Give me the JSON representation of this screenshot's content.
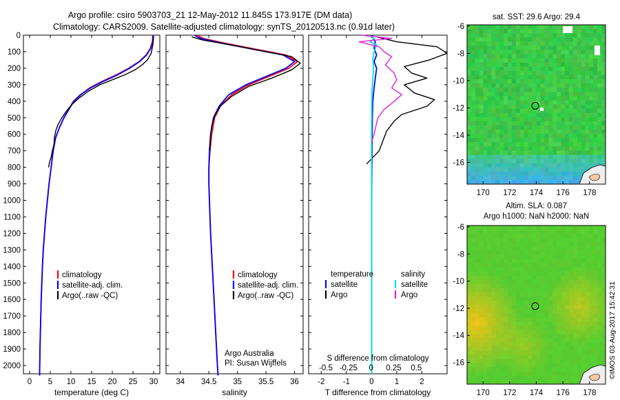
{
  "header": {
    "line1": "Argo profile: csiro 5903703_21 12-May-2012 11.845S 173.917E (DM data)",
    "line2": "Climatology: CARS2009. Satellite-adjusted climatology: synTS_20120513.nc (0.91d later)"
  },
  "footer_stamp": "©IMOS 03-Aug-2017 15:42:31",
  "colors": {
    "climatology": "#ff0000",
    "satellite": "#0000ff",
    "argo": "#000000",
    "salinity_satellite": "#00e0e0",
    "salinity_argo": "#e020e0",
    "sst_map_base": "#33cc44",
    "sla_map_base": "#55cc33"
  },
  "chart_data": [
    {
      "type": "line",
      "panel": "temperature",
      "xlabel": "temperature (deg C)",
      "ylabel": "",
      "xlim": [
        -1.5,
        31.5
      ],
      "ylim": [
        2050,
        0
      ],
      "xticks": [
        0,
        5,
        10,
        15,
        20,
        25,
        30
      ],
      "yticks": [
        0,
        100,
        200,
        300,
        400,
        500,
        600,
        700,
        800,
        900,
        1000,
        1100,
        1200,
        1300,
        1400,
        1500,
        1600,
        1700,
        1800,
        1900,
        2000
      ],
      "legend": {
        "placement": "lower-middle",
        "entries": [
          "climatology",
          "satellite-adj. clim.",
          "Argo(..raw -QC)"
        ]
      },
      "series": [
        {
          "name": "climatology",
          "color": "#ff0000",
          "points": [
            [
              29.8,
              0
            ],
            [
              29.7,
              40
            ],
            [
              29.2,
              80
            ],
            [
              28.2,
              120
            ],
            [
              26.5,
              160
            ],
            [
              24,
              200
            ],
            [
              21,
              240
            ],
            [
              17.5,
              280
            ],
            [
              14.5,
              320
            ],
            [
              12.3,
              360
            ],
            [
              10.6,
              400
            ],
            [
              9.4,
              450
            ],
            [
              8.3,
              500
            ],
            [
              7.2,
              560
            ],
            [
              6.3,
              620
            ],
            [
              5.7,
              700
            ],
            [
              5.2,
              800
            ],
            [
              4.7,
              900
            ],
            [
              4.3,
              1000
            ],
            [
              3.9,
              1100
            ],
            [
              3.6,
              1200
            ],
            [
              3.3,
              1300
            ],
            [
              3.1,
              1400
            ],
            [
              2.95,
              1500
            ],
            [
              2.8,
              1600
            ],
            [
              2.7,
              1700
            ],
            [
              2.6,
              1800
            ],
            [
              2.5,
              1900
            ],
            [
              2.45,
              2000
            ],
            [
              2.4,
              2060
            ]
          ]
        },
        {
          "name": "satellite-adj. clim.",
          "color": "#0000ff",
          "points": [
            [
              29.9,
              0
            ],
            [
              29.8,
              40
            ],
            [
              29.3,
              80
            ],
            [
              28.3,
              120
            ],
            [
              26.6,
              160
            ],
            [
              24.2,
              200
            ],
            [
              21.3,
              240
            ],
            [
              17.8,
              280
            ],
            [
              14.7,
              320
            ],
            [
              12.4,
              360
            ],
            [
              10.7,
              400
            ],
            [
              9.5,
              450
            ],
            [
              8.3,
              500
            ],
            [
              7.2,
              560
            ],
            [
              6.3,
              620
            ],
            [
              5.7,
              700
            ],
            [
              5.2,
              800
            ],
            [
              4.7,
              900
            ],
            [
              4.3,
              1000
            ],
            [
              3.9,
              1100
            ],
            [
              3.6,
              1200
            ],
            [
              3.3,
              1300
            ],
            [
              3.1,
              1400
            ],
            [
              2.95,
              1500
            ],
            [
              2.8,
              1600
            ],
            [
              2.7,
              1700
            ],
            [
              2.6,
              1800
            ],
            [
              2.5,
              1900
            ],
            [
              2.45,
              2000
            ],
            [
              2.4,
              2060
            ]
          ]
        },
        {
          "name": "Argo(..raw -QC)",
          "color": "#000000",
          "points": [
            [
              30,
              10
            ],
            [
              29.8,
              60
            ],
            [
              29.4,
              110
            ],
            [
              28.5,
              150
            ],
            [
              27.2,
              180
            ],
            [
              25.5,
              210
            ],
            [
              23,
              240
            ],
            [
              20,
              270
            ],
            [
              17,
              300
            ],
            [
              14.2,
              340
            ],
            [
              12,
              380
            ],
            [
              10.2,
              420
            ],
            [
              8.9,
              460
            ],
            [
              7.8,
              500
            ],
            [
              6.9,
              540
            ],
            [
              6.3,
              580
            ],
            [
              6,
              620
            ],
            [
              5.9,
              660
            ],
            [
              5.5,
              700
            ],
            [
              5.2,
              740
            ],
            [
              4.8,
              770
            ],
            [
              4.6,
              800
            ]
          ]
        }
      ]
    },
    {
      "type": "line",
      "panel": "salinity",
      "xlabel": "salinity",
      "ylabel": "",
      "xlim": [
        33.75,
        36.15
      ],
      "ylim": [
        2050,
        0
      ],
      "xticks": [
        34,
        34.5,
        35,
        35.5,
        36
      ],
      "legend": {
        "placement": "lower-middle",
        "entries": [
          "climatology",
          "satellite-adj. clim.",
          "Argo(..raw -QC)"
        ]
      },
      "annotation": [
        "Argo Australia",
        "PI: Susan Wijffels"
      ],
      "series": [
        {
          "name": "climatology",
          "color": "#ff0000",
          "points": [
            [
              34.3,
              0
            ],
            [
              34.4,
              20
            ],
            [
              34.8,
              50
            ],
            [
              35.4,
              90
            ],
            [
              35.85,
              120
            ],
            [
              36.05,
              160
            ],
            [
              35.9,
              200
            ],
            [
              35.55,
              250
            ],
            [
              35.2,
              300
            ],
            [
              34.9,
              360
            ],
            [
              34.7,
              430
            ],
            [
              34.6,
              500
            ],
            [
              34.55,
              600
            ],
            [
              34.52,
              700
            ],
            [
              34.5,
              800
            ],
            [
              34.5,
              900
            ],
            [
              34.51,
              1000
            ],
            [
              34.53,
              1200
            ],
            [
              34.56,
              1400
            ],
            [
              34.59,
              1600
            ],
            [
              34.62,
              1800
            ],
            [
              34.65,
              2000
            ],
            [
              34.66,
              2060
            ]
          ]
        },
        {
          "name": "satellite-adj. clim.",
          "color": "#0000ff",
          "points": [
            [
              34.25,
              0
            ],
            [
              34.35,
              20
            ],
            [
              34.75,
              50
            ],
            [
              35.35,
              90
            ],
            [
              35.8,
              120
            ],
            [
              36,
              160
            ],
            [
              35.85,
              200
            ],
            [
              35.5,
              250
            ],
            [
              35.15,
              300
            ],
            [
              34.85,
              360
            ],
            [
              34.68,
              430
            ],
            [
              34.58,
              500
            ],
            [
              34.53,
              600
            ],
            [
              34.51,
              700
            ],
            [
              34.5,
              800
            ],
            [
              34.5,
              900
            ],
            [
              34.51,
              1000
            ],
            [
              34.53,
              1200
            ],
            [
              34.56,
              1400
            ],
            [
              34.59,
              1600
            ],
            [
              34.62,
              1800
            ],
            [
              34.65,
              2000
            ],
            [
              34.66,
              2060
            ]
          ]
        },
        {
          "name": "Argo(..raw -QC)",
          "color": "#000000",
          "points": [
            [
              34.2,
              10
            ],
            [
              34.4,
              30
            ],
            [
              34.9,
              60
            ],
            [
              35.5,
              100
            ],
            [
              35.95,
              130
            ],
            [
              36.1,
              170
            ],
            [
              35.95,
              210
            ],
            [
              35.6,
              260
            ],
            [
              35.2,
              310
            ],
            [
              34.9,
              370
            ],
            [
              34.7,
              430
            ],
            [
              34.6,
              490
            ],
            [
              34.55,
              550
            ],
            [
              34.53,
              620
            ],
            [
              34.52,
              700
            ]
          ]
        }
      ]
    },
    {
      "type": "line",
      "panel": "difference",
      "xlabel": "T difference from climatology",
      "title_bottom": "S difference from climatology",
      "xlim": [
        -2.5,
        3
      ],
      "ylim": [
        2050,
        0
      ],
      "xticks": [
        -2,
        -1,
        0,
        1,
        2
      ],
      "xticks_top": [
        -0.5,
        -0.25,
        0,
        0.25,
        0.5
      ],
      "xtick_labels_top": [
        "-0.5",
        "-0.25",
        "0",
        "0.25",
        "0.5"
      ],
      "legend": {
        "placement": "lower-middle",
        "temperature_header": "temperature",
        "salinity_header": "salinity",
        "temperature_entries": [
          "satellite",
          "Argo"
        ],
        "salinity_entries": [
          "satellite",
          "Argo"
        ]
      },
      "series": [
        {
          "name": "temperature satellite",
          "color": "#0000ff",
          "points": [
            [
              0,
              0
            ],
            [
              0.15,
              40
            ],
            [
              0.1,
              80
            ],
            [
              0.2,
              120
            ],
            [
              0.1,
              160
            ],
            [
              0.2,
              200
            ],
            [
              0.15,
              260
            ],
            [
              0.1,
              320
            ],
            [
              0.05,
              400
            ],
            [
              0.03,
              500
            ],
            [
              0.02,
              700
            ],
            [
              0,
              1000
            ],
            [
              0,
              2050
            ]
          ]
        },
        {
          "name": "temperature Argo",
          "color": "#000000",
          "points": [
            [
              0.2,
              10
            ],
            [
              1,
              40
            ],
            [
              2.6,
              70
            ],
            [
              3,
              110
            ],
            [
              2.3,
              150
            ],
            [
              1.8,
              170
            ],
            [
              1.3,
              190
            ],
            [
              1.6,
              230
            ],
            [
              2.2,
              260
            ],
            [
              1.3,
              300
            ],
            [
              1.7,
              350
            ],
            [
              2.5,
              390
            ],
            [
              2.2,
              430
            ],
            [
              1.2,
              480
            ],
            [
              0.9,
              520
            ],
            [
              0.6,
              580
            ],
            [
              0.5,
              620
            ],
            [
              0.3,
              700
            ],
            [
              -0.2,
              780
            ]
          ]
        },
        {
          "name": "salinity satellite",
          "color": "#00e0e0",
          "points": [
            [
              -0.1,
              0
            ],
            [
              0.1,
              20
            ],
            [
              -0.05,
              40
            ],
            [
              0.2,
              60
            ],
            [
              0.1,
              100
            ],
            [
              0.05,
              140
            ],
            [
              0.08,
              200
            ],
            [
              0.05,
              260
            ],
            [
              0.02,
              330
            ],
            [
              0.01,
              420
            ],
            [
              0,
              600
            ],
            [
              0,
              900
            ],
            [
              0,
              1200
            ],
            [
              0,
              2050
            ]
          ]
        },
        {
          "name": "salinity Argo",
          "color": "#e020e0",
          "points": [
            [
              -0.4,
              0
            ],
            [
              0.8,
              20
            ],
            [
              -0.5,
              40
            ],
            [
              0.3,
              70
            ],
            [
              0.5,
              100
            ],
            [
              0.8,
              130
            ],
            [
              0.55,
              180
            ],
            [
              0.9,
              230
            ],
            [
              1,
              270
            ],
            [
              0.8,
              320
            ],
            [
              1.2,
              360
            ],
            [
              0.9,
              400
            ],
            [
              0.5,
              450
            ],
            [
              0.25,
              500
            ],
            [
              0.1,
              600
            ],
            [
              0,
              650
            ]
          ]
        }
      ]
    },
    {
      "type": "heatmap",
      "panel": "sst_map",
      "title": "sat. SST: 29.6 Argo: 29.4",
      "xticks": [
        170,
        172,
        174,
        176,
        178
      ],
      "yticks": [
        -6,
        -8,
        -10,
        -12,
        -14,
        -16
      ],
      "xlim": [
        168.8,
        179.2
      ],
      "ylim": [
        -17.6,
        -5.9
      ],
      "marker": {
        "lon": 173.917,
        "lat": -11.845
      }
    },
    {
      "type": "heatmap",
      "panel": "sla_map",
      "title": "Altim. SLA: 0.087",
      "subtitle": "Argo h1000: NaN h2000: NaN",
      "xticks": [
        170,
        172,
        174,
        176,
        178
      ],
      "yticks": [
        -6,
        -8,
        -10,
        -12,
        -14,
        -16
      ],
      "xlim": [
        168.8,
        179.2
      ],
      "ylim": [
        -17.6,
        -5.9
      ],
      "marker": {
        "lon": 173.917,
        "lat": -11.845
      }
    }
  ]
}
